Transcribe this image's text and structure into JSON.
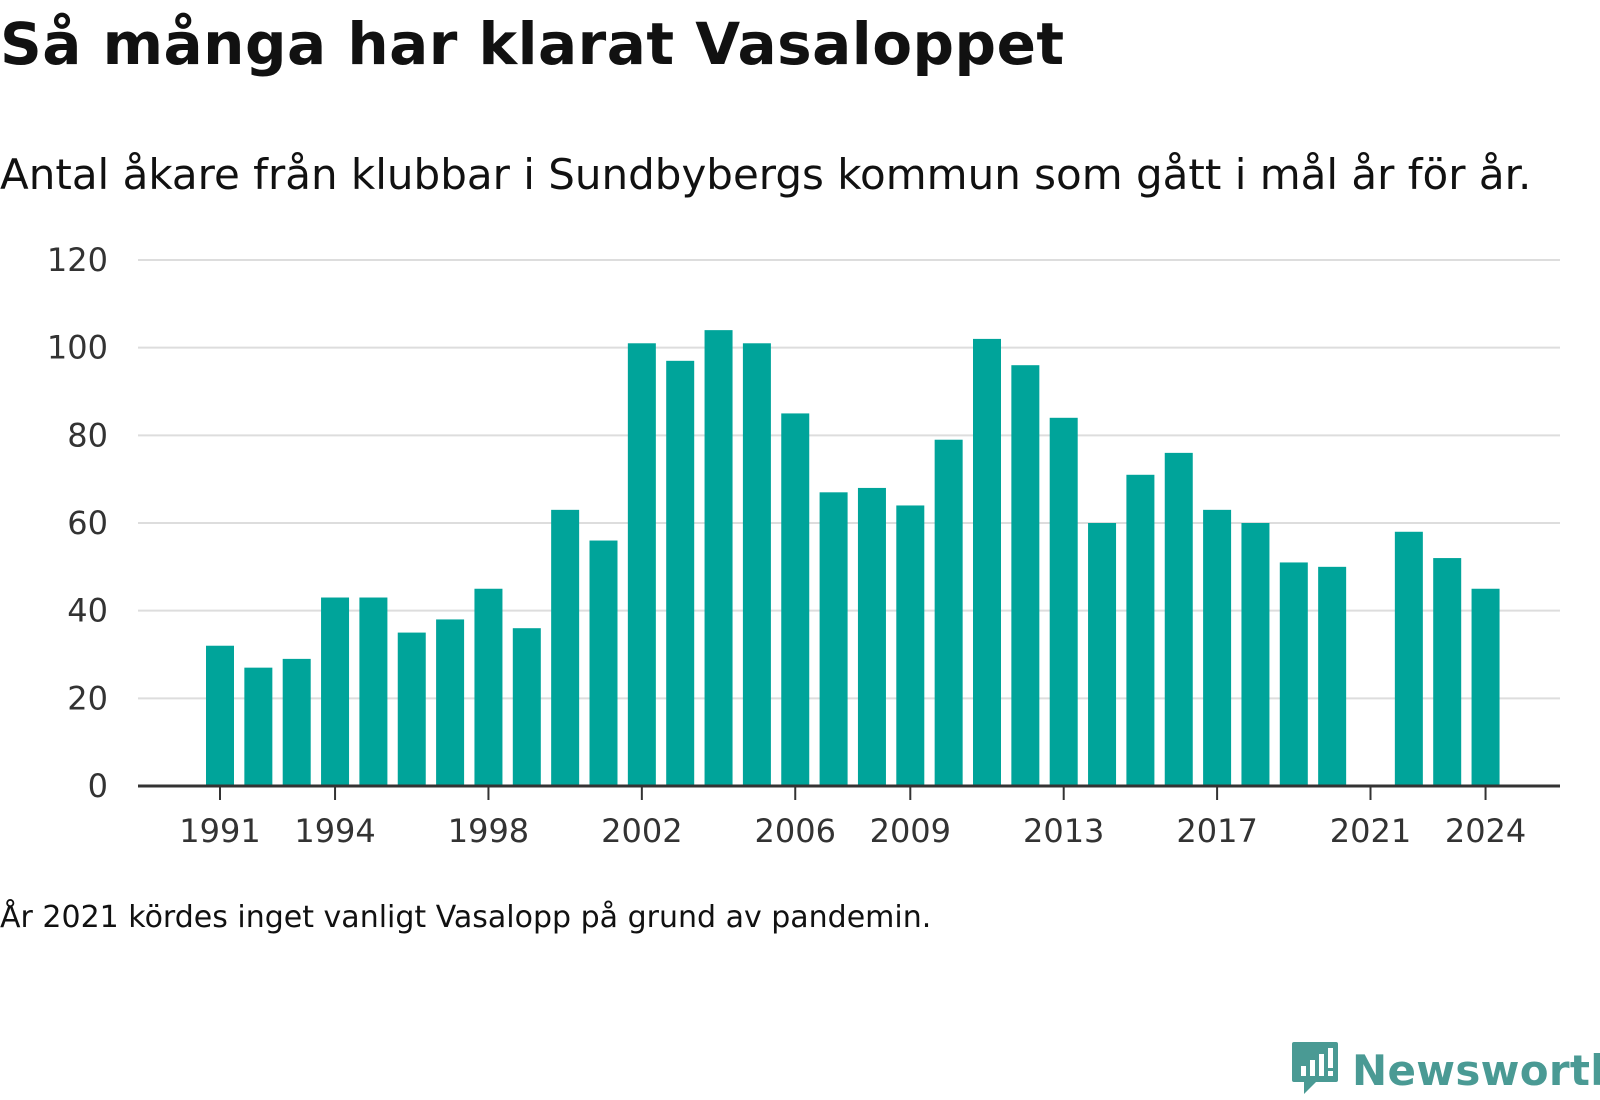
{
  "chart_data": {
    "type": "bar",
    "title": "Så många har klarat Vasaloppet",
    "subtitle": "Antal åkare från klubbar i Sundbybergs kommun som gått i mål år för år.",
    "x": [
      1991,
      1992,
      1993,
      1994,
      1995,
      1996,
      1997,
      1998,
      1999,
      2000,
      2001,
      2002,
      2003,
      2004,
      2005,
      2006,
      2007,
      2008,
      2009,
      2010,
      2011,
      2012,
      2013,
      2014,
      2015,
      2016,
      2017,
      2018,
      2019,
      2020,
      2021,
      2022,
      2023,
      2024
    ],
    "values": [
      32,
      27,
      29,
      43,
      43,
      35,
      38,
      45,
      36,
      63,
      56,
      101,
      97,
      104,
      101,
      85,
      67,
      68,
      64,
      79,
      102,
      96,
      84,
      60,
      71,
      76,
      63,
      60,
      51,
      50,
      null,
      58,
      52,
      45
    ],
    "x_ticks": [
      "1991",
      "1994",
      "1998",
      "2002",
      "2006",
      "2009",
      "2013",
      "2017",
      "2021",
      "2024"
    ],
    "y_ticks": [
      "0",
      "20",
      "40",
      "60",
      "80",
      "100",
      "120"
    ],
    "ylim": [
      0,
      120
    ],
    "grid": true,
    "bar_color": "#00a49a",
    "note": "År 2021 kördes inget vanligt Vasalopp på grund av pandemin."
  },
  "brand": {
    "name": "Newsworthy",
    "color": "#4a9a94",
    "logo_icon": "chart-bubble-icon"
  }
}
